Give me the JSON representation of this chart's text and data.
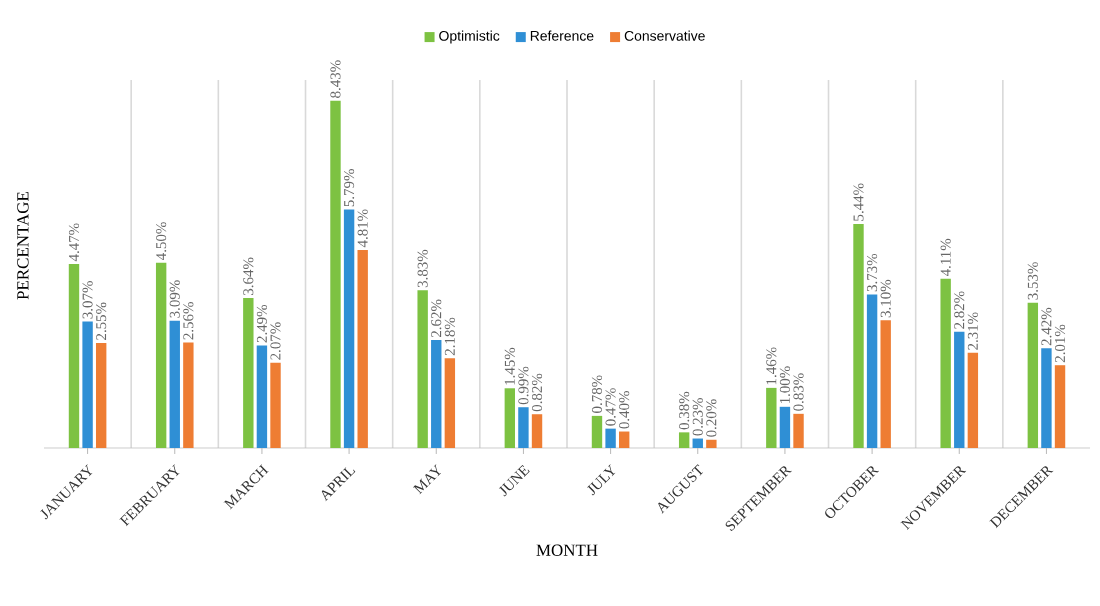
{
  "chart_data": {
    "type": "bar",
    "xlabel": "MONTH",
    "ylabel": "PERCENTAGE",
    "legend": "top",
    "grid": "x",
    "categories": [
      "JANUARY",
      "FEBRUARY",
      "MARCH",
      "APRIL",
      "MAY",
      "JUNE",
      "JULY",
      "AUGUST",
      "SEPTEMBER",
      "OCTOBER",
      "NOVEMBER",
      "DECEMBER"
    ],
    "series": [
      {
        "name": "Optimistic",
        "color": "#7dc242",
        "values": [
          4.47,
          4.5,
          3.64,
          8.43,
          3.83,
          1.45,
          0.78,
          0.38,
          1.46,
          5.44,
          4.11,
          3.53
        ],
        "value_labels": [
          "4.47%",
          "4.50%",
          "3.64%",
          "8.43%",
          "3.83%",
          "1.45%",
          "0.78%",
          "0.38%",
          "1.46%",
          "5.44%",
          "4.11%",
          "3.53%"
        ]
      },
      {
        "name": "Reference",
        "color": "#2f8fd5",
        "values": [
          3.07,
          3.09,
          2.49,
          5.79,
          2.62,
          0.99,
          0.47,
          0.23,
          1.0,
          3.73,
          2.82,
          2.42
        ],
        "value_labels": [
          "3.07%",
          "3.09%",
          "2.49%",
          "5.79%",
          "2.62%",
          "0.99%",
          "0.47%",
          "0.23%",
          "1.00%",
          "3.73%",
          "2.82%",
          "2.42%"
        ]
      },
      {
        "name": "Conservative",
        "color": "#ee7d33",
        "values": [
          2.55,
          2.56,
          2.07,
          4.81,
          2.18,
          0.82,
          0.4,
          0.2,
          0.83,
          3.1,
          2.31,
          2.01
        ],
        "value_labels": [
          "2.55%",
          "2.56%",
          "2.07%",
          "4.81%",
          "2.18%",
          "0.82%",
          "0.40%",
          "0.20%",
          "0.83%",
          "3.10%",
          "2.31%",
          "2.01%"
        ]
      }
    ]
  }
}
